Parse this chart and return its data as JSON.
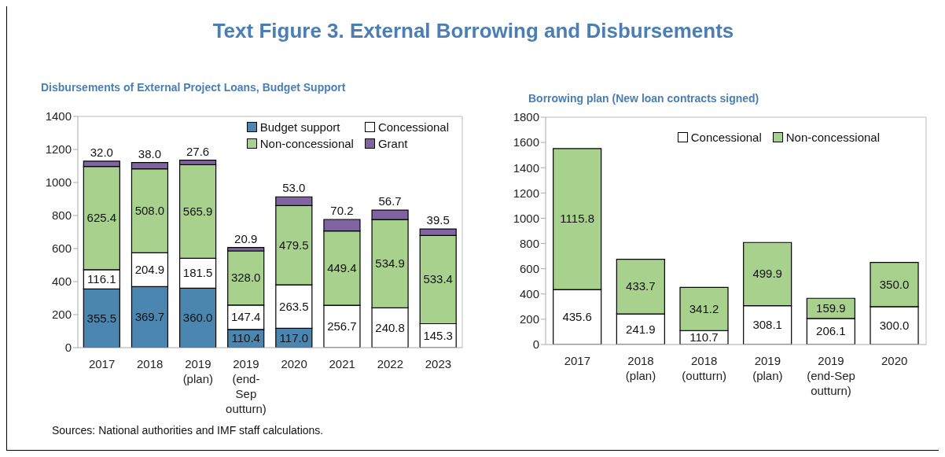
{
  "chart_data": [
    {
      "type": "bar",
      "stacked": true,
      "title": "Text Figure 3. External Borrowing and Disbursements",
      "subtitle": "Disbursements of External Project Loans, Budget Support",
      "categories": [
        "2017",
        "2018",
        "2019 (plan)",
        "2019 (end-Sep outturn)",
        "2020",
        "2021",
        "2022",
        "2023"
      ],
      "series": [
        {
          "name": "Budget support",
          "color": "#4a86b0",
          "values": [
            355.5,
            369.7,
            360.0,
            110.4,
            117.0,
            null,
            null,
            null
          ],
          "value_labels": [
            "355.5",
            "369.7",
            "360.0",
            "110.4",
            "117.0",
            null,
            null,
            null
          ]
        },
        {
          "name": "Concessional",
          "color": "#ffffff",
          "values": [
            116.1,
            204.9,
            181.5,
            147.4,
            263.5,
            256.7,
            240.8,
            145.3
          ],
          "value_labels": [
            "116.1",
            "204.9",
            "181.5",
            "147.4",
            "263.5",
            "256.7",
            "240.8",
            "145.3"
          ]
        },
        {
          "name": "Non-concessional",
          "color": "#a9d18e",
          "values": [
            625.4,
            508.0,
            565.9,
            328.0,
            479.5,
            449.4,
            534.9,
            533.4
          ],
          "value_labels": [
            "625.4",
            "508.0",
            "565.9",
            "328.0",
            "479.5",
            "449.4",
            "534.9",
            "533.4"
          ]
        },
        {
          "name": "Grant",
          "color": "#8064a2",
          "values": [
            32.0,
            38.0,
            27.6,
            20.9,
            53.0,
            70.2,
            56.7,
            39.5
          ],
          "value_labels": [
            "32.0",
            "38.0",
            "27.6",
            "20.9",
            "53.0",
            "70.2",
            "56.7",
            "39.5"
          ]
        }
      ],
      "ylim": [
        0,
        1400
      ],
      "yticks": [
        0,
        200,
        400,
        600,
        800,
        1000,
        1200,
        1400
      ],
      "legend": "top right",
      "annotations": [
        "Sources: National authorities and IMF staff calculations."
      ]
    },
    {
      "type": "bar",
      "stacked": true,
      "title": "Borrowing plan (New loan contracts signed)",
      "categories": [
        "2017",
        "2018 (plan)",
        "2018 (outturn)",
        "2019 (plan)",
        "2019 (end-Sep outturn)",
        "2020"
      ],
      "series": [
        {
          "name": "Concessional",
          "color": "#ffffff",
          "values": [
            435.6,
            241.9,
            110.7,
            308.1,
            206.1,
            300.0
          ],
          "value_labels": [
            "435.6",
            "241.9",
            "110.7",
            "308.1",
            "206.1",
            "300.0"
          ]
        },
        {
          "name": "Non-concessional",
          "color": "#a9d18e",
          "values": [
            1115.8,
            433.7,
            341.2,
            499.9,
            159.9,
            350.0
          ],
          "value_labels": [
            "1115.8",
            "433.7",
            "341.2",
            "499.9",
            "159.9",
            "350.0"
          ]
        }
      ],
      "ylim": [
        0,
        1800
      ],
      "yticks": [
        0,
        200,
        400,
        600,
        800,
        1000,
        1200,
        1400,
        1600,
        1800
      ],
      "legend": "top right"
    }
  ]
}
